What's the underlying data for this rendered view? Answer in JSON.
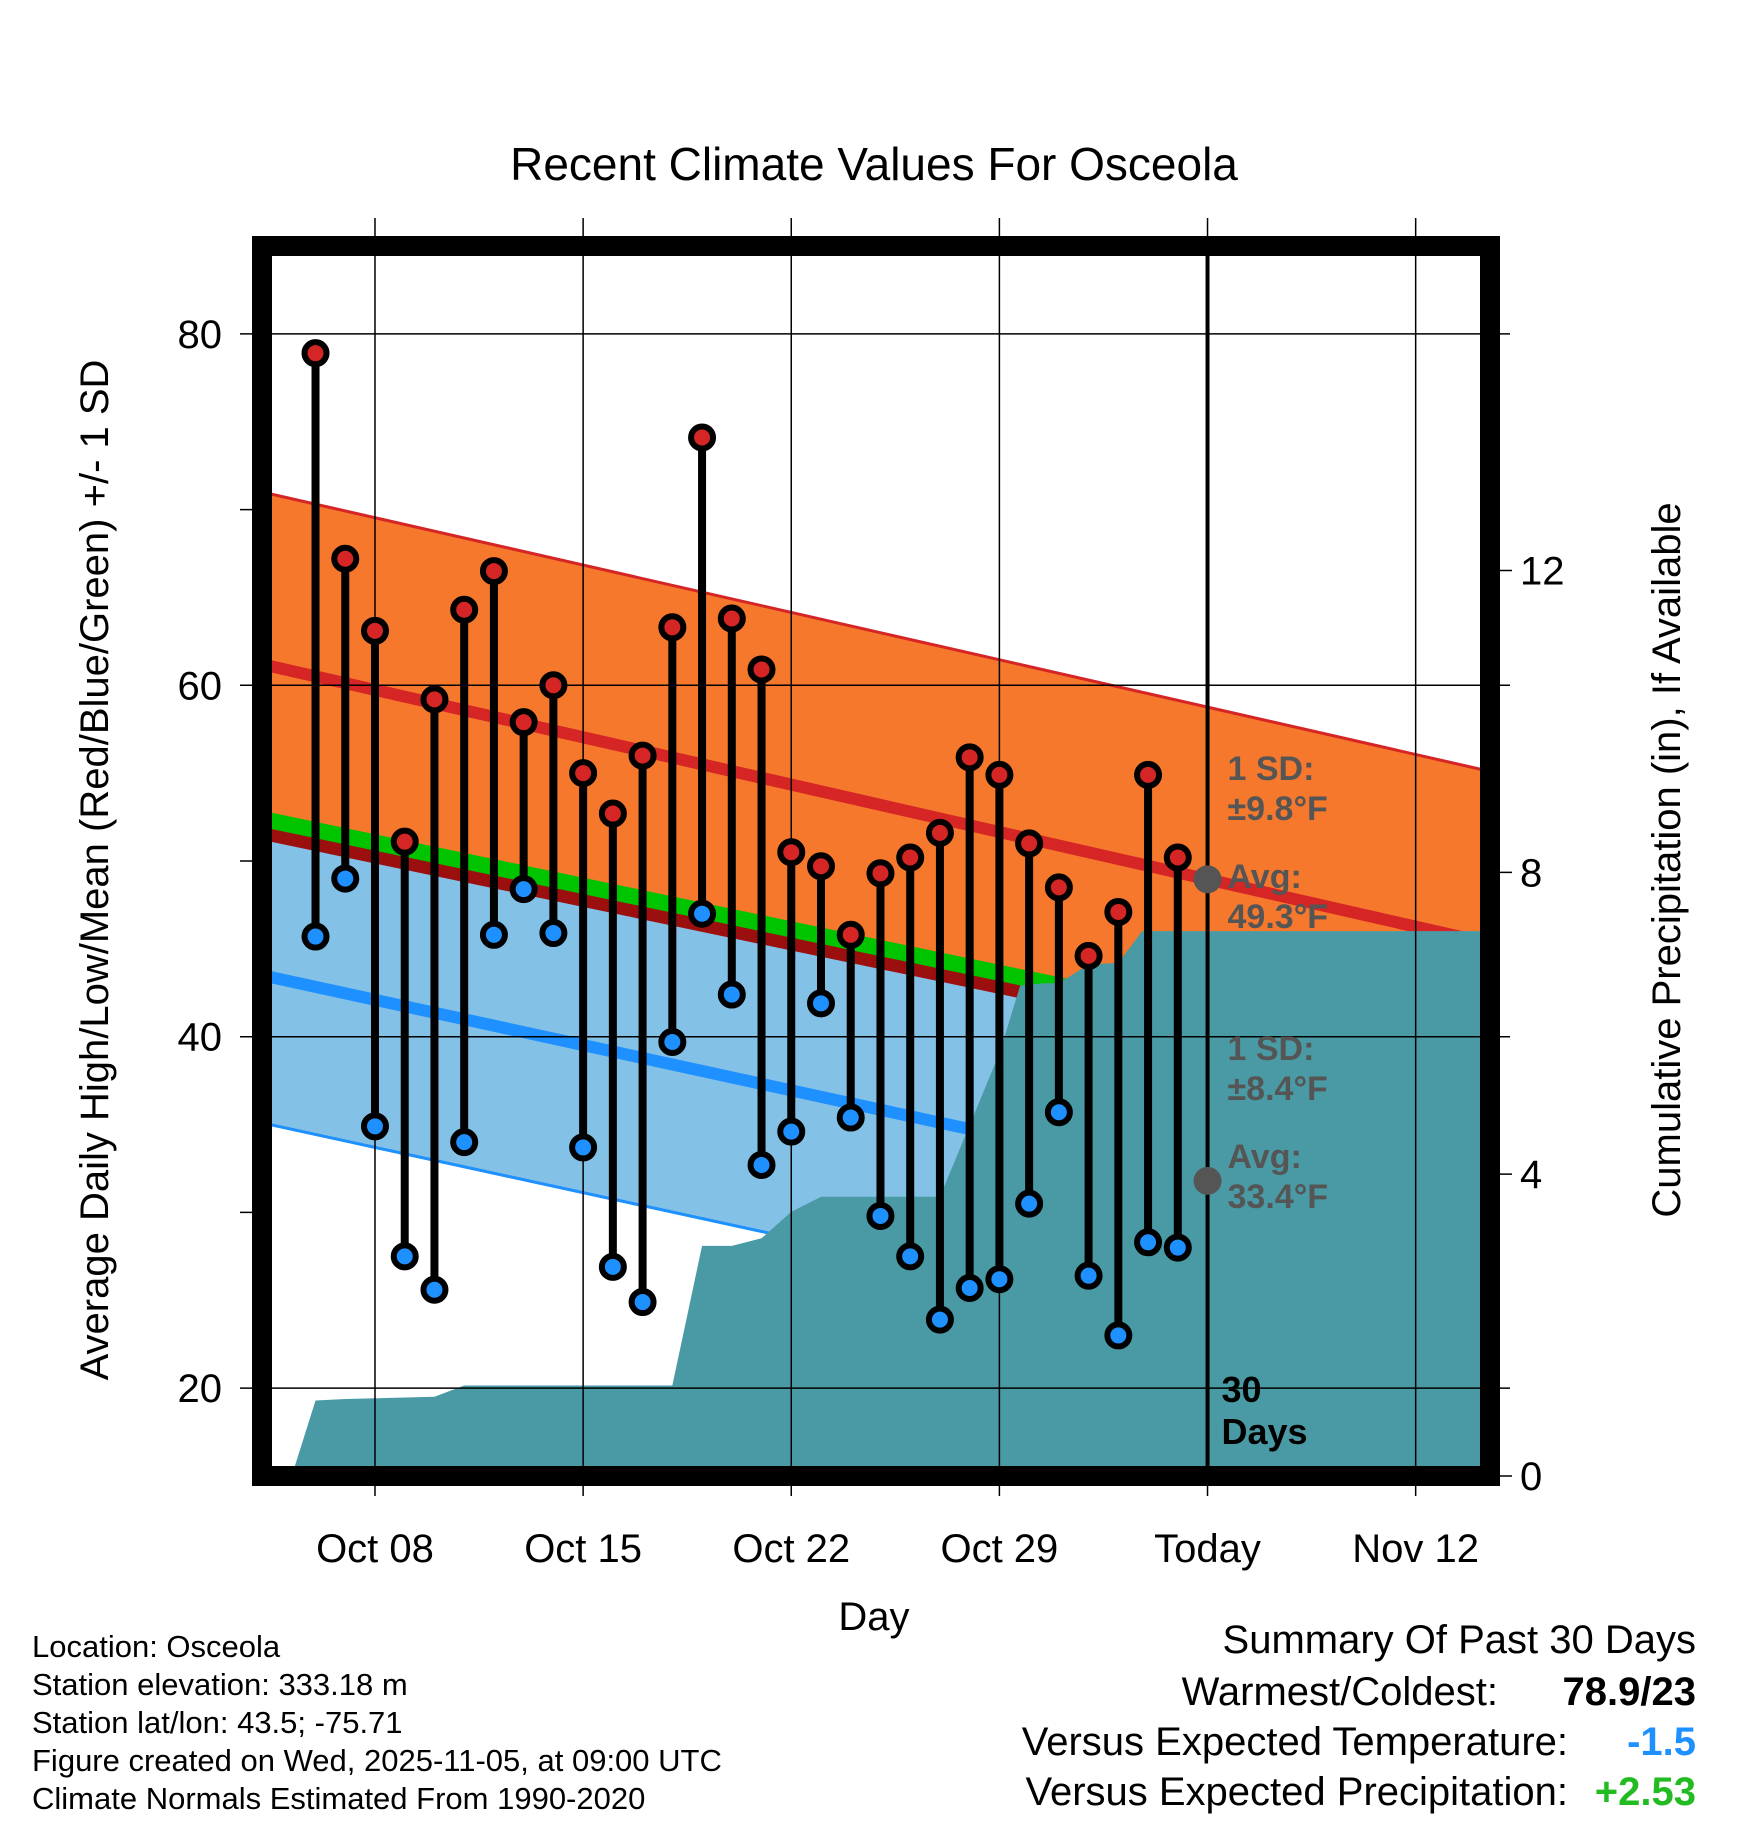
{
  "chart_data": {
    "type": "line",
    "title": "Recent Climate Values For Osceola",
    "xlabel": "Day",
    "ylabel": "Average Daily High/Low/Mean (Red/Blue/Green) +/- 1 SD",
    "y2label": "Cumulative Precipitation (in), If Available",
    "x_tick_labels": [
      "Oct 08",
      "Oct 15",
      "Oct 22",
      "Oct 29",
      "Today",
      "Nov 12"
    ],
    "x_tick_days": [
      3,
      10,
      17,
      24,
      31,
      38
    ],
    "xlim": [
      -0.8,
      40.5
    ],
    "ylim": [
      15,
      85
    ],
    "y_ticks": [
      20,
      40,
      60,
      80
    ],
    "y2lim": [
      0,
      16.3
    ],
    "y2_ticks": [
      0,
      4,
      8,
      12
    ],
    "today_day": 31,
    "highs": [
      78.9,
      67.2,
      63.1,
      51.1,
      59.2,
      64.3,
      66.5,
      57.9,
      60.0,
      55.0,
      52.7,
      56.0,
      63.3,
      74.1,
      63.8,
      60.9,
      50.5,
      49.7,
      45.8,
      49.3,
      50.2,
      51.6,
      55.9,
      54.9,
      51.0,
      48.5,
      44.6,
      47.1,
      54.9,
      50.2
    ],
    "lows": [
      45.7,
      49.0,
      34.9,
      27.5,
      25.6,
      34.0,
      45.8,
      48.4,
      45.9,
      33.7,
      26.9,
      24.9,
      39.7,
      47.0,
      42.4,
      32.7,
      34.6,
      41.9,
      35.4,
      29.8,
      27.5,
      23.9,
      25.7,
      26.2,
      30.5,
      35.7,
      26.4,
      23.0,
      28.3,
      28.0
    ],
    "normal_high": {
      "start": 61.2,
      "end": 45.3
    },
    "normal_low": {
      "start": 43.5,
      "end": 28.3
    },
    "normal_mean": {
      "start": 52.4,
      "end": 37.8
    },
    "high_sd": 9.8,
    "low_sd": 8.4,
    "precip_days": [
      -0.8,
      0.2,
      1.0,
      2.0,
      5.0,
      6.0,
      7.0,
      13.0,
      14.0,
      15.0,
      16.0,
      17.0,
      18.0,
      19.0,
      20.0,
      21.0,
      22.0,
      23.0,
      24.0,
      24.7,
      25.5,
      26.0,
      27.0,
      28.0,
      28.8,
      29.0,
      40.5
    ],
    "precip_cum": [
      0.0,
      0.0,
      1.0,
      1.02,
      1.05,
      1.2,
      1.2,
      1.2,
      3.05,
      3.05,
      3.15,
      3.5,
      3.7,
      3.7,
      3.7,
      3.7,
      3.7,
      4.65,
      5.6,
      6.5,
      6.53,
      6.53,
      6.78,
      6.8,
      7.22,
      7.22,
      7.22
    ],
    "annotations": {
      "high_sd": "1 SD:",
      "high_sd_val": "±9.8°F",
      "high_avg": "Avg:",
      "high_avg_val": "49.3°F",
      "low_sd": "1 SD:",
      "low_sd_val": "±8.4°F",
      "low_avg": "Avg:",
      "low_avg_val": "33.4°F",
      "days": "30",
      "days_label": "Days"
    },
    "colors": {
      "high_band": "#f5782d",
      "high_line": "#d52525",
      "low_band": "#84c1e6",
      "low_line": "#1e90ff",
      "mean_line": "#00c400",
      "precip": "#4a9aa5",
      "dark_red": "#9c0f0f"
    }
  },
  "info": {
    "location": "Location: Osceola",
    "elevation": "Station elevation: 333.18 m",
    "latlon": "Station lat/lon: 43.5; -75.71",
    "created": "Figure created on Wed, 2025-11-05, at 09:00 UTC",
    "normals": "Climate Normals Estimated From 1990-2020"
  },
  "summary": {
    "heading": "Summary Of Past 30 Days",
    "warm_label": "Warmest/Coldest:",
    "warm_value": "78.9/23",
    "temp_label": "Versus Expected Temperature:",
    "temp_value": "-1.5",
    "temp_color": "#1e90ff",
    "precip_label": "Versus Expected Precipitation:",
    "precip_value": "+2.53",
    "precip_color": "#22bb22"
  }
}
